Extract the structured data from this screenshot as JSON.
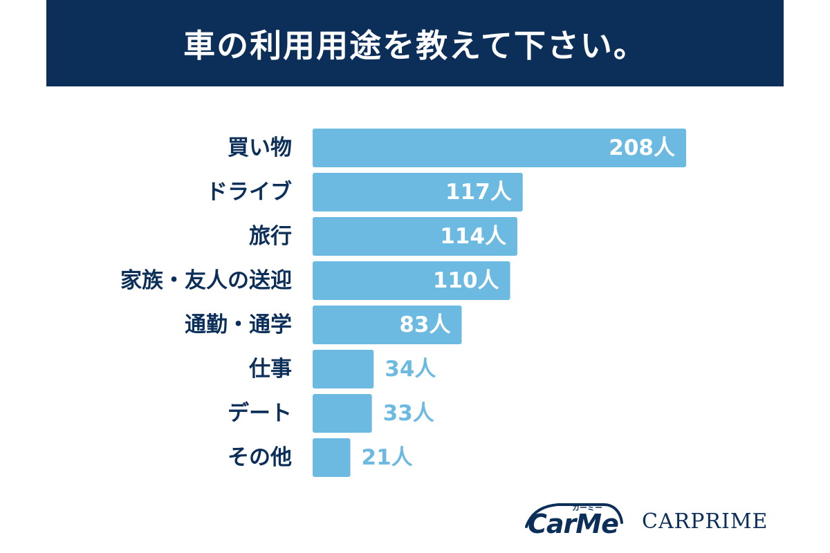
{
  "header": {
    "title": "車の利用用途を教えて下さい。"
  },
  "colors": {
    "banner": "#0c2f5a",
    "bar": "#6cbae2",
    "label_dark": "#0c2f5a",
    "value_inside": "#ffffff",
    "value_outside": "#6cbae2"
  },
  "chart_data": {
    "type": "bar",
    "orientation": "horizontal",
    "categories": [
      "買い物",
      "ドライブ",
      "旅行",
      "家族・友人の送迎",
      "通勤・通学",
      "仕事",
      "デート",
      "その他"
    ],
    "values": [
      208,
      117,
      114,
      110,
      83,
      34,
      33,
      21
    ],
    "value_labels": [
      "208人",
      "117人",
      "114人",
      "110人",
      "83人",
      "34人",
      "33人",
      "21人"
    ],
    "unit": "人",
    "grid": false
  },
  "logos": {
    "carme": {
      "text": "CarMe",
      "kana": "カーミー"
    },
    "carprime": {
      "text": "CARPRIME"
    }
  }
}
